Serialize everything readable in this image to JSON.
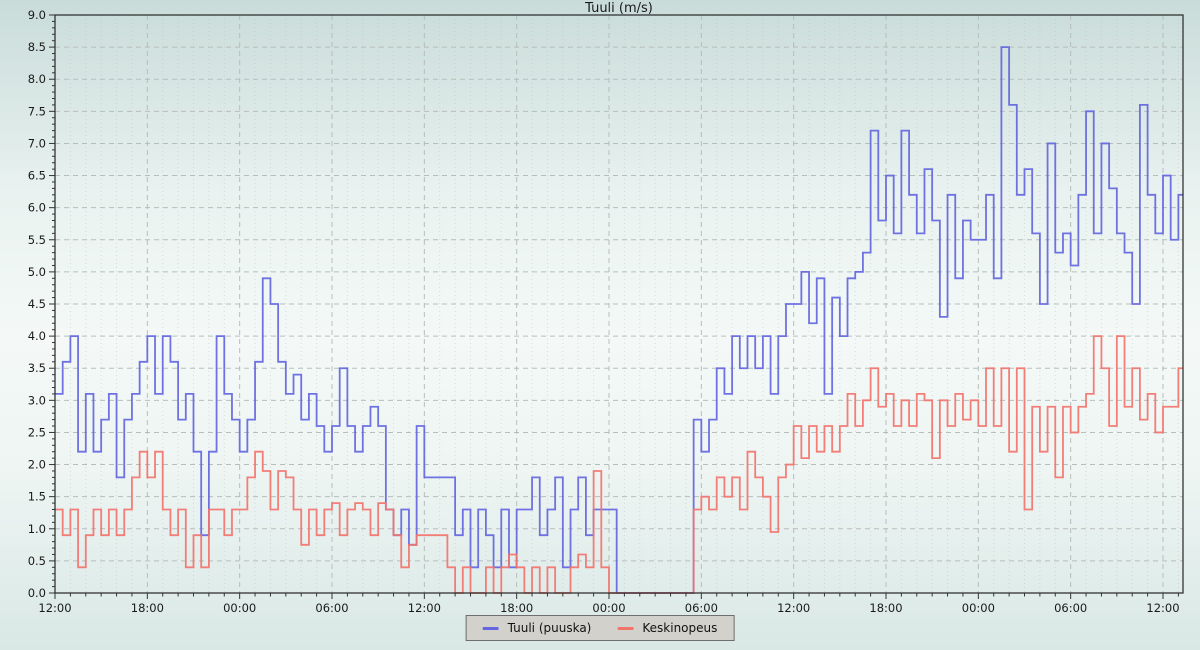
{
  "title": "Tuuli (m/s)",
  "legend": {
    "items": [
      {
        "label": "Tuuli (puuska)",
        "color": "#6366e0"
      },
      {
        "label": "Keskinopeus",
        "color": "#f3736d"
      }
    ]
  },
  "colors": {
    "gust_line": "#6366e0",
    "average_line": "#f3736d",
    "grid": "#b4bcba",
    "axis": "#333333",
    "text": "#1a1a1a",
    "legend_bg": "#d3d1cc",
    "legend_border": "#6e6e6e",
    "background_top": "#c9dcd9",
    "background_middle": "#f4f9f7",
    "background_bottom": "#d9e8e5"
  },
  "chart_data": {
    "type": "line",
    "step": true,
    "title": "Tuuli (m/s)",
    "xlabel": "",
    "ylabel": "",
    "x_unit": "hours",
    "xlim": [
      0,
      73.3
    ],
    "ylim": [
      0,
      9
    ],
    "y_tick_step": 0.5,
    "y_minor_step": 0.1,
    "x_major_interval_hours": 6,
    "x_minor_interval_hours": 1,
    "x_tick_labels": [
      "12:00",
      "18:00",
      "00:00",
      "06:00",
      "12:00",
      "18:00",
      "00:00",
      "06:00",
      "12:00",
      "18:00",
      "00:00",
      "06:00",
      "12:00"
    ],
    "grid": "dashed-major-dotted-minor",
    "legend_position": "bottom-center",
    "sample_interval_hours": 0.5,
    "series": [
      {
        "name": "Tuuli (puuska)",
        "color": "#6366e0",
        "values": [
          3.1,
          3.6,
          4.0,
          2.2,
          3.1,
          2.2,
          2.7,
          3.1,
          1.8,
          2.7,
          3.1,
          3.6,
          4.0,
          3.1,
          4.0,
          3.6,
          2.7,
          3.1,
          2.2,
          0.9,
          2.2,
          4.0,
          3.1,
          2.7,
          2.2,
          2.7,
          3.6,
          4.9,
          4.5,
          3.6,
          3.1,
          3.4,
          2.7,
          3.1,
          2.6,
          2.2,
          2.6,
          3.5,
          2.6,
          2.2,
          2.6,
          2.9,
          2.6,
          1.3,
          0.9,
          1.3,
          0.75,
          2.6,
          1.8,
          1.8,
          1.8,
          1.8,
          0.9,
          1.3,
          0.4,
          1.3,
          0.9,
          0.4,
          1.3,
          0.4,
          1.3,
          1.3,
          1.8,
          0.9,
          1.3,
          1.8,
          0.4,
          1.3,
          1.8,
          0.9,
          1.3,
          1.3,
          1.3,
          0,
          0,
          0,
          0,
          0,
          0,
          0,
          0,
          0,
          0,
          2.7,
          2.2,
          2.7,
          3.5,
          3.1,
          4.0,
          3.5,
          4.0,
          3.5,
          4.0,
          3.1,
          4.0,
          4.5,
          4.5,
          5.0,
          4.2,
          4.9,
          3.1,
          4.6,
          4.0,
          4.9,
          5.0,
          5.3,
          7.2,
          5.8,
          6.5,
          5.6,
          7.2,
          6.2,
          5.6,
          6.6,
          5.8,
          4.3,
          6.2,
          4.9,
          5.8,
          5.5,
          5.5,
          6.2,
          4.9,
          8.5,
          7.6,
          6.2,
          6.6,
          5.6,
          4.5,
          7.0,
          5.3,
          5.6,
          5.1,
          6.2,
          7.5,
          5.6,
          7.0,
          6.3,
          5.6,
          5.3,
          4.5,
          7.6,
          6.2,
          5.6,
          6.5,
          5.5,
          6.2
        ]
      },
      {
        "name": "Keskinopeus",
        "color": "#f3736d",
        "values": [
          1.3,
          0.9,
          1.3,
          0.4,
          0.9,
          1.3,
          0.9,
          1.3,
          0.9,
          1.3,
          1.8,
          2.2,
          1.8,
          2.2,
          1.3,
          0.9,
          1.3,
          0.4,
          0.9,
          0.4,
          1.3,
          1.3,
          0.9,
          1.3,
          1.3,
          1.8,
          2.2,
          1.9,
          1.3,
          1.9,
          1.8,
          1.3,
          0.75,
          1.3,
          0.9,
          1.3,
          1.4,
          0.9,
          1.3,
          1.4,
          1.3,
          0.9,
          1.4,
          1.3,
          0.9,
          0.4,
          0.75,
          0.9,
          0.9,
          0.9,
          0.9,
          0.4,
          0,
          0.4,
          0,
          0,
          0.4,
          0,
          0.4,
          0.6,
          0.4,
          0,
          0.4,
          0,
          0.4,
          0,
          0,
          0.4,
          0.6,
          0.4,
          1.9,
          0.4,
          0,
          0,
          0,
          0,
          0,
          0,
          0,
          0,
          0,
          0,
          0,
          1.3,
          1.5,
          1.3,
          1.8,
          1.5,
          1.8,
          1.3,
          2.2,
          1.8,
          1.5,
          0.95,
          1.8,
          2.0,
          2.6,
          2.1,
          2.6,
          2.2,
          2.6,
          2.2,
          2.6,
          3.1,
          2.6,
          3.0,
          3.5,
          2.9,
          3.1,
          2.6,
          3.0,
          2.6,
          3.1,
          3.0,
          2.1,
          3.0,
          2.6,
          3.1,
          2.7,
          3.0,
          2.6,
          3.5,
          2.6,
          3.5,
          2.2,
          3.5,
          1.3,
          2.9,
          2.2,
          2.9,
          1.8,
          2.9,
          2.5,
          2.9,
          3.1,
          4.0,
          3.5,
          2.6,
          4.0,
          2.9,
          3.5,
          2.7,
          3.1,
          2.5,
          2.9,
          2.9,
          3.5
        ]
      }
    ]
  }
}
